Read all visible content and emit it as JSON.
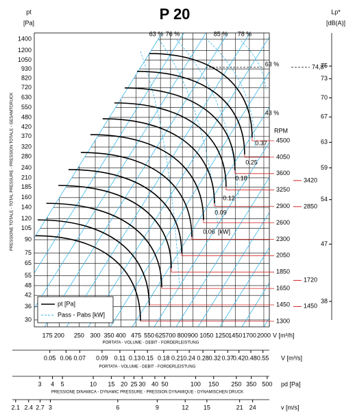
{
  "chart_data": {
    "type": "line",
    "title": "P 20",
    "y_label": "pt",
    "y_unit": "[Pa]",
    "y_axis_title": "PRESSIONE TOTALE - TOTAL PRESSURE - PRESSION TOTALE - GESAMTDRUCK",
    "x_label": "V [m³/h]",
    "x_axis_title": "PORTATA - VOLUME - DEBIT - FORDERLEISTUNG",
    "log_scale": true,
    "grid": true,
    "xlim": [
      151,
      2128
    ],
    "xticks": [
      175,
      200,
      250,
      300,
      350,
      400,
      475,
      550,
      625,
      700,
      800,
      900,
      1050,
      1250,
      1450,
      1700,
      2000
    ],
    "ylim": [
      27.3,
      1524
    ],
    "yticks": [
      1400,
      1200,
      1050,
      930,
      820,
      720,
      630,
      550,
      480,
      420,
      370,
      320,
      280,
      240,
      210,
      185,
      160,
      140,
      120,
      105,
      90,
      75,
      65,
      55,
      48,
      42,
      36,
      30
    ],
    "y2_label": "Lp*",
    "y2_unit": "[dB(A)]",
    "y2lim": [
      34.0,
      80.2
    ],
    "y2ticks": [
      75,
      73,
      70,
      67,
      63,
      59,
      54,
      47,
      38
    ],
    "rpm_label": "RPM",
    "curves": [
      {
        "rpm": 4500,
        "x": [
          551,
          1753
        ],
        "values": [
          1150,
          365
        ]
      },
      {
        "rpm": 4050,
        "x": [
          480,
          1611
        ],
        "values": [
          901,
          289
        ]
      },
      {
        "rpm": 3600,
        "x": [
          418,
          1445
        ],
        "values": [
          718,
          233
        ]
      },
      {
        "rpm": 3250,
        "x": [
          372,
          1308
        ],
        "values": [
          585,
          186
        ]
      },
      {
        "rpm": 2900,
        "x": [
          326,
          1147
        ],
        "values": [
          471,
          148
        ]
      },
      {
        "rpm": 2600,
        "x": [
          284,
          1014
        ],
        "values": [
          379,
          118
        ]
      },
      {
        "rpm": 2300,
        "x": [
          255,
          889
        ],
        "values": [
          297,
          93.5
        ]
      },
      {
        "rpm": 2050,
        "x": [
          222,
          793
        ],
        "values": [
          235,
          75
        ]
      },
      {
        "rpm": 1850,
        "x": [
          198,
          706
        ],
        "values": [
          189,
          61
        ]
      },
      {
        "rpm": 1650,
        "x": [
          173,
          634
        ],
        "values": [
          148,
          47
        ]
      },
      {
        "rpm": 1450,
        "x": [
          157,
          551
        ],
        "values": [
          118,
          36.5
        ]
      },
      {
        "rpm": 1300,
        "x": [
          153,
          499
        ],
        "values": [
          95,
          29.7
        ]
      }
    ],
    "curve_color": "#000000",
    "line_color": "#38b6e8",
    "mark_color": "#d42020",
    "power": [
      0.37,
      0.25,
      0.18,
      0.12,
      0.09,
      0.06
    ],
    "power_unit": "[kW]",
    "efficiency_labels": [
      "63 %",
      "76 %",
      "85 %",
      "78 %",
      "63 %",
      "43 %"
    ],
    "lp_mark": {
      "value": 74.8,
      "label": "74,8*"
    },
    "rpm_marks": [
      {
        "rpm": 3420,
        "lp": 57.0
      },
      {
        "rpm": 2850,
        "lp": 52.9
      },
      {
        "rpm": 1720,
        "lp": 41.3
      },
      {
        "rpm": 1450,
        "lp": 37.2
      }
    ],
    "legend": [
      {
        "label": "pt [Pa]",
        "color": "#000000",
        "dashed": false
      },
      {
        "label": "Pass - Pabs [kW]",
        "color": "#38b6e8",
        "dashed": true
      }
    ],
    "secondary_axes": [
      {
        "label": "V [m³/s]",
        "title": "PORTATA - VOLUME - DEBIT - FORDERLEISTUNG",
        "lim": [
          0.0328,
          0.591
        ],
        "ticks": [
          0.05,
          0.06,
          0.07,
          0.09,
          0.11,
          0.13,
          0.15,
          0.18,
          0.21,
          0.24,
          0.28,
          0.32,
          0.37,
          0.42,
          0.48,
          0.55
        ]
      },
      {
        "label": "pd [Pa]",
        "title": "PRESSIONE DINAMICA - DYNAMIC PRESSURE - PRESSION DYNAMIQUE - DYNAMISCHEN DRUCK",
        "lim": [
          1.62,
          525
        ],
        "ticks": [
          3,
          4,
          5,
          10,
          15,
          20,
          25,
          30,
          40,
          50,
          100,
          150,
          250,
          350,
          500
        ]
      },
      {
        "label": "v [m/s]",
        "lim": [
          2.03,
          28.5
        ],
        "ticks": [
          2.1,
          2.4,
          2.7,
          3,
          6,
          9,
          12,
          15,
          21,
          24
        ]
      }
    ]
  }
}
